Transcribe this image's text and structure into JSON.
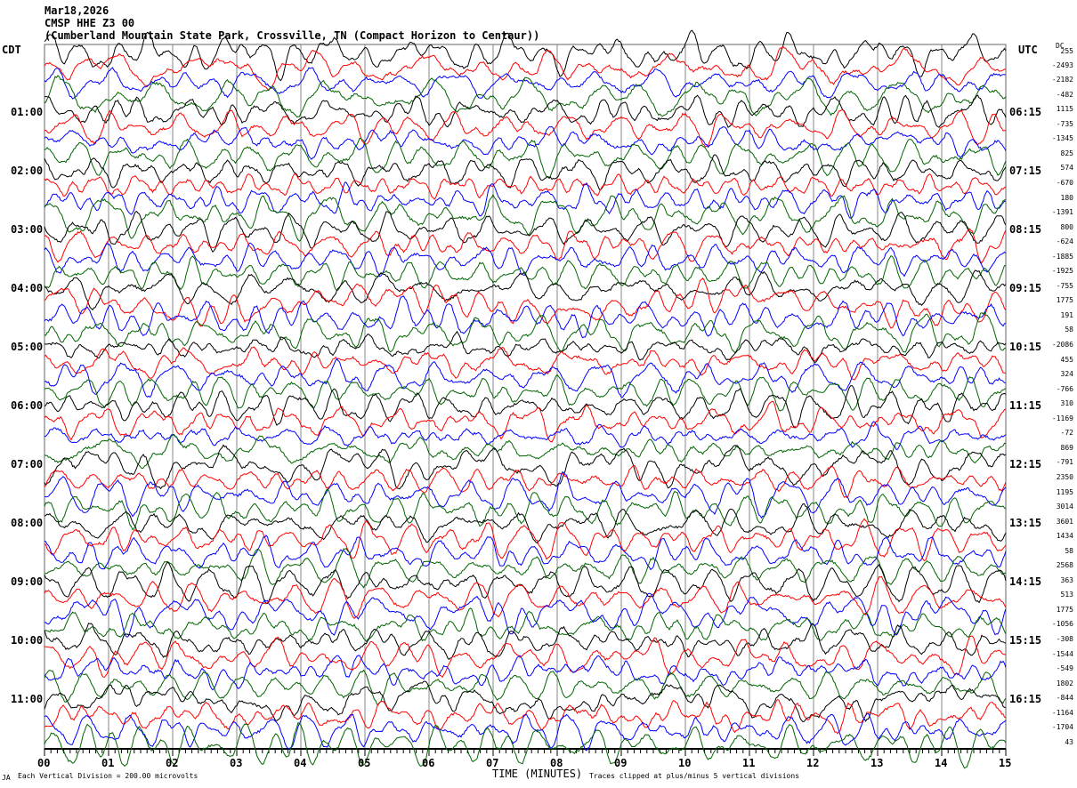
{
  "header": {
    "date": "Mar18,2026",
    "station": "CMSP HHE Z3 00",
    "location": "(Cumberland Mountain State Park, Crossville, TN (Compact Horizon to Centaur))"
  },
  "left_timezone": "CDT",
  "right_timezone": "UTC",
  "dc_header": "DC",
  "chart_data": {
    "type": "line",
    "title": "CMSP HHE Z3 00 helicorder",
    "xlabel": "TIME (MINUTES)",
    "xlim": [
      0,
      15
    ],
    "x_ticks": [
      "00",
      "01",
      "02",
      "03",
      "04",
      "05",
      "06",
      "07",
      "08",
      "09",
      "10",
      "11",
      "12",
      "13",
      "14",
      "15"
    ],
    "left_time_labels": [
      "01:00",
      "02:00",
      "03:00",
      "04:00",
      "05:00",
      "06:00",
      "07:00",
      "08:00",
      "09:00",
      "10:00",
      "11:00"
    ],
    "right_time_labels": [
      "06:15",
      "07:15",
      "08:15",
      "09:15",
      "10:15",
      "11:15",
      "12:15",
      "13:15",
      "14:15",
      "15:15",
      "16:15"
    ],
    "dc_offsets": [
      "255",
      "-2493",
      "-2182",
      "-482",
      "1115",
      "-735",
      "-1345",
      "825",
      "574",
      "-670",
      "180",
      "-1391",
      "800",
      "-624",
      "-1885",
      "-1925",
      "-755",
      "1775",
      "191",
      "58",
      "-2086",
      "455",
      "324",
      "-766",
      "310",
      "-1169",
      "-72",
      "869",
      "-791",
      "2350",
      "1195",
      "3014",
      "3601",
      "1434",
      "58",
      "2568",
      "363",
      "513",
      "1775",
      "-1056",
      "-308",
      "-1544",
      "-549",
      "1802",
      "-844",
      "-1164",
      "-1704",
      "43"
    ],
    "trace_count": 48,
    "trace_colors": [
      "#000000",
      "#ff0000",
      "#0000ff",
      "#006400"
    ],
    "vertical_division": "Each Vertical Division =  200.00 microvolts",
    "clip_note": "Traces clipped at plus/minus 5 vertical divisions"
  },
  "footer_mark": "JA"
}
